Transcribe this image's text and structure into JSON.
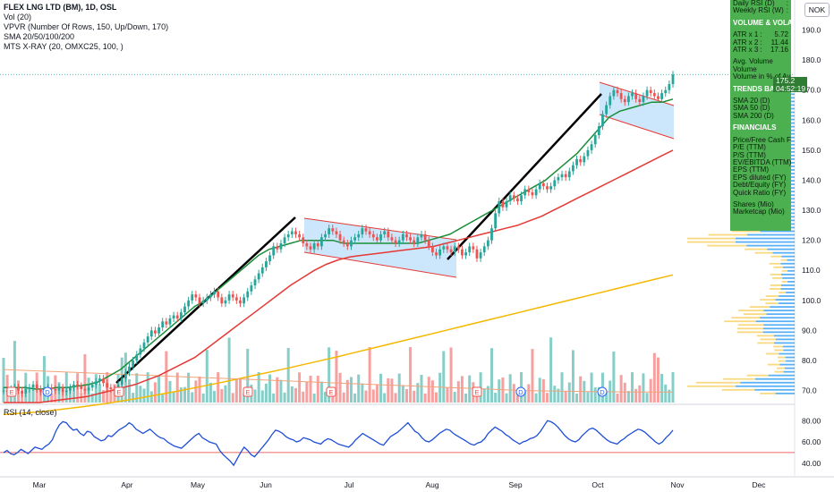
{
  "legend": {
    "title": "FLEX LNG LTD (BM), 1D, OSL",
    "vol": "Vol (20)",
    "vpvr": "VPVR (Number Of Rows, 150, Up/Down, 170)",
    "sma": "SMA 20/50/100/200",
    "xray": "MTS X-RAY (20, OMXC25, 100, )"
  },
  "rsi_legend": "RSI (14, close)",
  "currency": "NOK",
  "price_tag": {
    "price": "175.2",
    "countdown": "04:52:19"
  },
  "panel": {
    "daily_rsi": "Daily RSI (D)",
    "weekly_rsi": "Weekly RSI (W)",
    "volatility_header": "VOLUME & VOLATIL",
    "atr1_label": "ATR x 1 :",
    "atr1": "5.72",
    "atr2_label": "ATR x 2 :",
    "atr2": "11.44",
    "atr3_label": "ATR x 3 :",
    "atr3": "17.16",
    "avg_volume": "Avg. Volume",
    "volume": "Volume",
    "volume_pct": "Volume in % of Avg",
    "trends_header": "TRENDS BASED O",
    "sma20": "SMA 20 (D)",
    "sma50": "SMA 50 (D)",
    "sma200": "SMA 200 (D)",
    "financials_header": "FINANCIALS",
    "fin_items": [
      "Price/Free Cash F",
      "P/E (TTM)",
      "P/S (TTM)",
      "EV/EBITDA (TTM)",
      "EPS (TTM)",
      "EPS diluted (FY)",
      "Debt/Equity (FY)",
      "Quick Ratio (FY)"
    ],
    "shares": "Shares (Mio)",
    "marketcap": "Marketcap (Mio)"
  },
  "colors": {
    "up": "#26a69a",
    "down": "#ef5350",
    "sma20": "#1b8e3a",
    "sma50": "#e53935",
    "sma200": "#f5b800",
    "sma100": "#f2a37b",
    "rsi": "#1e4ed8",
    "channel_fill": "#bbdefb",
    "channel_edge": "#e53935",
    "panel": "#4caf50",
    "vpvr_up": "#2196f3",
    "vpvr_down": "#f7c948"
  },
  "chart_data": {
    "type": "candlestick",
    "price_axis": {
      "ticks": [
        70,
        80,
        90,
        100,
        110,
        120,
        130,
        140,
        150,
        160,
        170,
        180,
        190
      ],
      "ylim": [
        66,
        200
      ]
    },
    "rsi_axis": {
      "ticks": [
        40,
        60,
        80
      ],
      "ylim": [
        28,
        92
      ],
      "level": 50
    },
    "x_ticks": [
      "Mar",
      "Apr",
      "May",
      "Jun",
      "Jul",
      "Aug",
      "Sep",
      "Oct",
      "Nov",
      "Dec"
    ],
    "last_price": 175.2,
    "close": [
      70,
      69.5,
      70.5,
      71,
      70,
      69,
      70.5,
      71,
      72,
      70.5,
      69.5,
      70,
      71,
      70.5,
      70,
      71,
      69.5,
      70,
      71,
      72,
      71.5,
      70.5,
      70,
      71,
      72,
      73,
      74,
      72.5,
      71,
      70.5,
      70,
      72,
      74,
      76,
      78,
      80,
      82,
      84,
      86,
      88,
      90,
      89,
      91,
      93,
      92,
      94,
      95,
      94,
      96,
      98,
      100,
      102,
      101,
      99,
      100,
      101,
      102,
      103,
      101,
      99,
      100,
      102,
      101,
      100,
      99,
      101,
      103,
      105,
      107,
      109,
      111,
      113,
      115,
      118,
      117,
      119,
      121,
      122,
      123,
      122,
      121,
      119,
      118,
      117,
      119,
      118,
      121,
      122,
      124,
      123,
      122,
      120,
      119,
      118,
      120,
      121,
      122,
      124,
      123,
      122,
      121,
      120,
      122,
      123,
      121,
      120,
      119,
      120,
      122,
      121,
      120,
      119,
      121,
      122,
      120,
      118,
      116,
      115,
      117,
      118,
      117,
      116,
      118,
      117,
      115,
      116,
      118,
      117,
      114,
      116,
      118,
      120,
      124,
      129,
      133,
      131,
      133,
      135,
      134,
      133,
      135,
      137,
      136,
      135,
      137,
      139,
      138,
      137,
      138,
      140,
      141,
      142,
      141,
      143,
      145,
      147,
      146,
      148,
      150,
      152,
      155,
      158,
      162,
      165,
      168,
      170,
      169,
      167,
      166,
      168,
      169,
      167,
      166,
      168,
      170,
      169,
      168,
      167,
      169,
      170,
      172,
      175.2
    ],
    "series": [
      {
        "name": "SMA 20",
        "values": [
          71,
          71,
          71,
          70.5,
          70.5,
          71,
          71,
          71.5,
          72,
          73,
          75,
          77,
          80,
          83,
          86,
          89,
          92,
          95,
          98,
          100,
          103,
          106,
          109,
          112,
          115,
          117,
          118,
          119,
          120,
          120,
          120,
          120,
          119,
          119,
          119,
          119,
          119,
          119,
          119,
          119,
          120,
          121,
          122,
          124,
          126,
          128,
          130,
          132,
          134,
          136,
          138,
          140,
          143,
          146,
          149,
          153,
          157,
          161,
          163,
          164,
          165,
          166,
          166,
          167
        ]
      },
      {
        "name": "SMA 50",
        "values": [
          66,
          66,
          66,
          66,
          66.5,
          67,
          67.5,
          68,
          69,
          70,
          71,
          72,
          73.5,
          75,
          77,
          79,
          81,
          84,
          87,
          90,
          93,
          96,
          99,
          102,
          105,
          107.5,
          110,
          112,
          113.5,
          114.5,
          115,
          115.5,
          116,
          116.5,
          117,
          117.5,
          118,
          119,
          120,
          121,
          122,
          123,
          124,
          125,
          126.5,
          128,
          130,
          132,
          134,
          136,
          138,
          140,
          142,
          144,
          146,
          148,
          150
        ]
      },
      {
        "name": "SMA 100",
        "values": [
          77,
          76.5,
          76,
          75.5,
          75,
          74.5,
          74,
          73.5,
          73,
          72.5,
          72,
          71.5,
          71,
          70.5,
          70,
          69.8,
          69.6,
          69.5,
          69.5
        ]
      },
      {
        "name": "SMA 200",
        "values": [
          62,
          62.5,
          63,
          63.8,
          64.6,
          65.5,
          66.5,
          67.6,
          68.8,
          70,
          71.3,
          72.6,
          74,
          75.4,
          76.8,
          78.3,
          79.8,
          81.3,
          82.9,
          84.5,
          86.1,
          87.7,
          89.3,
          90.9,
          92.5,
          94.1,
          95.7,
          97.3,
          98.9,
          100.5,
          102.1,
          103.7,
          105.3,
          106.9,
          108.5
        ]
      }
    ],
    "rsi_values": [
      50,
      52,
      49,
      48,
      50,
      53,
      51,
      49,
      52,
      55,
      54,
      53,
      56,
      58,
      62,
      70,
      76,
      79,
      78,
      74,
      71,
      72,
      68,
      66,
      70,
      69,
      65,
      63,
      61,
      62,
      66,
      65,
      68,
      71,
      73,
      75,
      78,
      76,
      72,
      70,
      68,
      70,
      72,
      69,
      66,
      64,
      63,
      60,
      58,
      56,
      55,
      54,
      57,
      60,
      63,
      66,
      68,
      64,
      62,
      60,
      59,
      58,
      52,
      48,
      45,
      42,
      38,
      44,
      50,
      55,
      52,
      48,
      46,
      50,
      54,
      58,
      62,
      67,
      71,
      70,
      68,
      65,
      63,
      62,
      60,
      61,
      64,
      63,
      62,
      60,
      59,
      58,
      61,
      63,
      62,
      60,
      58,
      57,
      56,
      55,
      58,
      62,
      65,
      68,
      66,
      64,
      62,
      60,
      58,
      57,
      61,
      65,
      67,
      69,
      72,
      75,
      78,
      74,
      70,
      68,
      64,
      61,
      60,
      62,
      65,
      68,
      70,
      72,
      71,
      68,
      66,
      64,
      62,
      60,
      58,
      57,
      59,
      60,
      63,
      68,
      71,
      74,
      72,
      70,
      67,
      65,
      62,
      60,
      58,
      60,
      61,
      63,
      64,
      66,
      70,
      75,
      80,
      79,
      77,
      74,
      70,
      66,
      63,
      61,
      60,
      62,
      66,
      69,
      72,
      73,
      71,
      68,
      65,
      62,
      60,
      59,
      58,
      61,
      63,
      66,
      68,
      70,
      72,
      71,
      69,
      66,
      63,
      60,
      58,
      60,
      64,
      67,
      71
    ]
  }
}
